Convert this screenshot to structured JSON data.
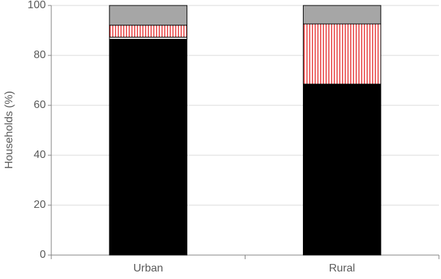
{
  "chart_data": {
    "type": "stacked-bar",
    "y_label": "Households (%)",
    "categories": [
      "Urban",
      "Rural"
    ],
    "series": [
      {
        "color": "#000000",
        "values": [
          86.5,
          68.5
        ]
      },
      {
        "color": "#ffffff",
        "values": [
          0.8,
          0
        ]
      },
      {
        "color": "#e00000",
        "pattern": "vertical-stripes",
        "values": [
          4.8,
          24.1
        ]
      },
      {
        "color": "#a6a6a6",
        "values": [
          7.9,
          7.4
        ]
      }
    ],
    "ylim": [
      0,
      100
    ],
    "yticks": [
      0,
      20,
      40,
      60,
      80,
      100
    ],
    "grid": true
  }
}
